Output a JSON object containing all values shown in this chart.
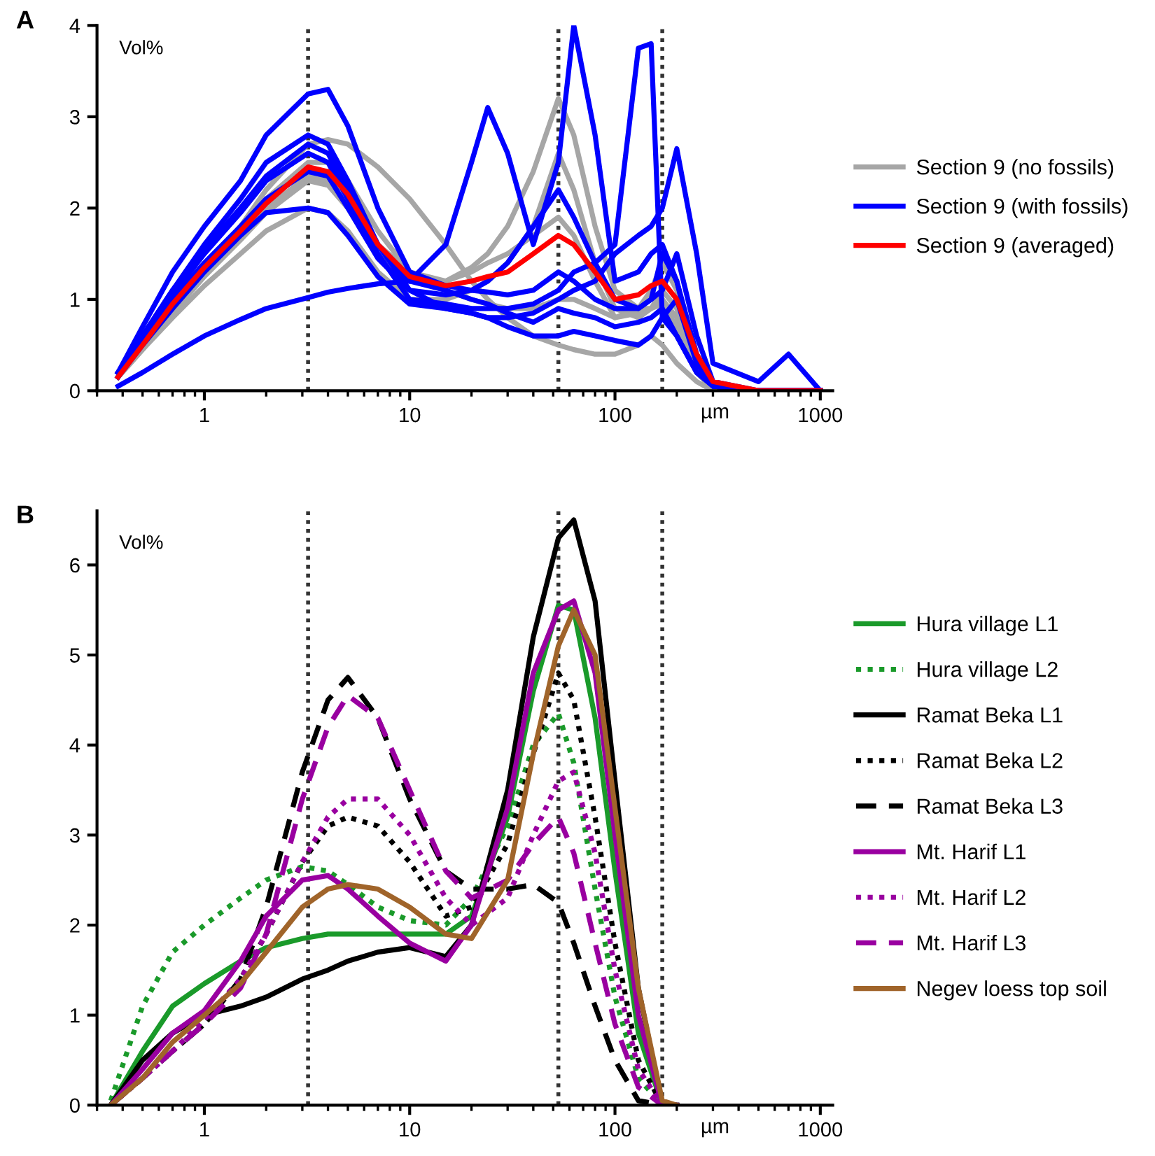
{
  "chart_data": [
    {
      "type": "line",
      "title": "A",
      "xlabel": "µm",
      "annotations": [
        "Vol%"
      ],
      "log": "x",
      "xlim": [
        0.3,
        1150
      ],
      "xticks": [
        1,
        10,
        100,
        1000
      ],
      "ylim": [
        0,
        4
      ],
      "yticks": [
        0,
        1,
        2,
        3,
        4
      ],
      "grid": false,
      "legend": "right",
      "marker": "none",
      "line_style": "solid",
      "x": [
        0.38,
        0.5,
        0.7,
        1,
        1.5,
        2,
        3.2,
        4,
        5,
        7,
        10,
        15,
        20,
        24,
        30,
        40,
        53,
        63,
        80,
        100,
        130,
        150,
        170,
        200,
        250,
        300,
        500,
        700,
        1000
      ],
      "ref_lines": [
        {
          "axis": "x",
          "value": 3.2,
          "color": "#333333",
          "line_style": "dotted"
        },
        {
          "axis": "x",
          "value": 53,
          "color": "#333333",
          "line_style": "dotted"
        },
        {
          "axis": "x",
          "value": 170,
          "color": "#333333",
          "line_style": "dotted"
        }
      ],
      "series": [
        {
          "name": "Section 9 (no fossils)",
          "color": "#a6a6a6",
          "values": [
            0.2,
            0.5,
            0.9,
            1.3,
            1.8,
            2.2,
            2.7,
            2.75,
            2.7,
            2.45,
            2.1,
            1.6,
            1.2,
            1.0,
            0.8,
            0.6,
            0.5,
            0.45,
            0.4,
            0.4,
            0.5,
            0.6,
            0.5,
            0.3,
            0.1,
            0,
            0,
            0,
            0
          ]
        },
        {
          "color": "#a6a6a6",
          "values": [
            0.15,
            0.45,
            0.85,
            1.25,
            1.65,
            1.95,
            2.3,
            2.25,
            2.0,
            1.5,
            1.2,
            1.2,
            1.35,
            1.5,
            1.8,
            2.4,
            3.2,
            2.8,
            1.8,
            1.1,
            0.9,
            0.9,
            1.0,
            0.8,
            0.2,
            0.02,
            0,
            0,
            0
          ]
        },
        {
          "color": "#a6a6a6",
          "values": [
            0.15,
            0.45,
            0.8,
            1.15,
            1.5,
            1.75,
            2.0,
            1.95,
            1.75,
            1.3,
            1.0,
            1.0,
            1.1,
            1.2,
            1.4,
            1.8,
            2.6,
            2.2,
            1.4,
            0.9,
            0.8,
            0.9,
            1.1,
            0.9,
            0.2,
            0.02,
            0,
            0,
            0
          ]
        },
        {
          "color": "#a6a6a6",
          "values": [
            0.15,
            0.5,
            0.9,
            1.3,
            1.7,
            2.0,
            2.35,
            2.3,
            2.1,
            1.6,
            1.3,
            1.2,
            1.3,
            1.4,
            1.5,
            1.7,
            1.9,
            1.7,
            1.2,
            0.8,
            0.9,
            1.1,
            1.4,
            1.1,
            0.3,
            0.05,
            0,
            0,
            0
          ]
        },
        {
          "color": "#a6a6a6",
          "values": [
            0.2,
            0.5,
            0.95,
            1.35,
            1.8,
            2.1,
            2.5,
            2.5,
            2.3,
            1.75,
            1.3,
            1.1,
            1.0,
            0.95,
            0.9,
            0.9,
            1.0,
            1.0,
            0.9,
            0.8,
            0.85,
            0.9,
            0.95,
            0.7,
            0.2,
            0.02,
            0,
            0,
            0
          ]
        },
        {
          "name": "Section 9 (with fossils)",
          "color": "#0000ff",
          "values": [
            0.2,
            0.7,
            1.3,
            1.8,
            2.3,
            2.8,
            3.25,
            3.3,
            2.9,
            2.0,
            1.3,
            1.15,
            1.1,
            1.08,
            1.05,
            1.1,
            1.3,
            1.2,
            1.0,
            0.9,
            0.9,
            1.0,
            1.1,
            1.5,
            0.6,
            0.1,
            0,
            0,
            0
          ]
        },
        {
          "color": "#0000ff",
          "values": [
            0.05,
            0.2,
            0.4,
            0.6,
            0.78,
            0.9,
            1.02,
            1.08,
            1.12,
            1.17,
            1.2,
            1.1,
            1.0,
            0.95,
            0.85,
            0.75,
            0.9,
            0.85,
            0.8,
            0.7,
            0.75,
            0.8,
            0.9,
            0.6,
            0.2,
            0.05,
            0,
            0,
            0
          ]
        },
        {
          "color": "#0000ff",
          "values": [
            0.2,
            0.6,
            1.1,
            1.6,
            2.1,
            2.5,
            2.8,
            2.7,
            2.3,
            1.6,
            1.2,
            1.6,
            2.5,
            3.1,
            2.6,
            1.6,
            2.5,
            4.0,
            2.8,
            1.2,
            1.3,
            1.5,
            1.6,
            1.2,
            0.4,
            0.05,
            0,
            0,
            0
          ]
        },
        {
          "color": "#0000ff",
          "values": [
            0.15,
            0.55,
            1.05,
            1.5,
            1.95,
            2.3,
            2.6,
            2.5,
            2.1,
            1.5,
            1.0,
            0.95,
            0.9,
            0.9,
            0.9,
            0.95,
            1.1,
            1.3,
            1.4,
            1.6,
            3.75,
            3.8,
            0.8,
            0.6,
            0.2,
            0.05,
            0,
            0,
            0
          ]
        },
        {
          "color": "#0000ff",
          "values": [
            0.2,
            0.6,
            1.1,
            1.55,
            2.0,
            2.35,
            2.7,
            2.6,
            2.2,
            1.6,
            1.1,
            0.9,
            0.85,
            0.8,
            0.8,
            0.85,
            1.0,
            1.1,
            1.2,
            1.5,
            1.7,
            1.8,
            2.0,
            2.65,
            1.5,
            0.3,
            0.1,
            0.4,
            0.0
          ]
        },
        {
          "color": "#0000ff",
          "values": [
            0.2,
            0.6,
            1.0,
            1.4,
            1.8,
            2.1,
            2.4,
            2.35,
            2.0,
            1.45,
            1.1,
            1.05,
            1.1,
            1.2,
            1.4,
            1.8,
            2.2,
            1.9,
            1.4,
            1.0,
            0.9,
            1.0,
            1.5,
            1.2,
            0.3,
            0.05,
            0,
            0,
            0
          ]
        },
        {
          "color": "#0000ff",
          "values": [
            0.15,
            0.5,
            0.9,
            1.3,
            1.7,
            1.95,
            2.0,
            1.95,
            1.7,
            1.25,
            0.95,
            0.9,
            0.85,
            0.8,
            0.7,
            0.6,
            0.6,
            0.65,
            0.6,
            0.55,
            0.5,
            0.6,
            0.8,
            1.0,
            0.3,
            0.05,
            0,
            0,
            0
          ]
        },
        {
          "name": "Section 9 (averaged)",
          "color": "#ff0000",
          "values": [
            0.15,
            0.5,
            0.95,
            1.35,
            1.75,
            2.05,
            2.45,
            2.4,
            2.15,
            1.6,
            1.25,
            1.15,
            1.2,
            1.25,
            1.3,
            1.5,
            1.7,
            1.6,
            1.3,
            1.0,
            1.05,
            1.15,
            1.2,
            1.0,
            0.4,
            0.1,
            0,
            0,
            0
          ]
        }
      ]
    },
    {
      "type": "line",
      "title": "B",
      "xlabel": "µm",
      "annotations": [
        "Vol%"
      ],
      "log": "x",
      "xlim": [
        0.3,
        1150
      ],
      "xticks": [
        1,
        10,
        100,
        1000
      ],
      "ylim": [
        0,
        6.6
      ],
      "yticks": [
        0,
        1,
        2,
        3,
        4,
        5,
        6
      ],
      "grid": false,
      "legend": "right",
      "marker": "none",
      "x": [
        0.35,
        0.5,
        0.7,
        1,
        1.5,
        2,
        3,
        4,
        5,
        7,
        10,
        15,
        20,
        30,
        40,
        53,
        63,
        80,
        100,
        130,
        170,
        200
      ],
      "ref_lines": [
        {
          "axis": "x",
          "value": 3.2,
          "color": "#333333",
          "line_style": "dotted"
        },
        {
          "axis": "x",
          "value": 53,
          "color": "#333333",
          "line_style": "dotted"
        },
        {
          "axis": "x",
          "value": 170,
          "color": "#333333",
          "line_style": "dotted"
        }
      ],
      "series": [
        {
          "name": "Hura village L1",
          "color": "#1a9a2a",
          "line_style": "solid",
          "values": [
            0,
            0.6,
            1.1,
            1.35,
            1.6,
            1.75,
            1.85,
            1.9,
            1.9,
            1.9,
            1.9,
            1.9,
            2.1,
            3.2,
            4.6,
            5.55,
            5.5,
            4.3,
            2.6,
            0.8,
            0,
            0
          ]
        },
        {
          "name": "Hura village L2",
          "color": "#1a9a2a",
          "line_style": "dotted",
          "values": [
            0.05,
            1.1,
            1.7,
            2.0,
            2.3,
            2.5,
            2.65,
            2.6,
            2.45,
            2.2,
            2.05,
            2.0,
            2.3,
            3.1,
            4.0,
            4.35,
            3.8,
            2.4,
            1.2,
            0.3,
            0,
            0
          ]
        },
        {
          "name": "Ramat Beka L1",
          "color": "#000000",
          "line_style": "solid",
          "values": [
            0,
            0.5,
            0.8,
            1.0,
            1.1,
            1.2,
            1.4,
            1.5,
            1.6,
            1.7,
            1.75,
            1.65,
            2.0,
            3.5,
            5.2,
            6.3,
            6.5,
            5.6,
            3.6,
            1.3,
            0,
            0
          ]
        },
        {
          "name": "Ramat Beka L2",
          "color": "#000000",
          "line_style": "dotted",
          "values": [
            0,
            0.3,
            0.6,
            0.9,
            1.4,
            1.9,
            2.7,
            3.1,
            3.2,
            3.1,
            2.7,
            2.1,
            2.2,
            2.9,
            3.9,
            4.8,
            4.5,
            3.2,
            1.8,
            0.5,
            0,
            0
          ]
        },
        {
          "name": "Ramat Beka L3",
          "color": "#000000",
          "line_style": "dashed",
          "values": [
            0,
            0.3,
            0.6,
            0.9,
            1.4,
            2.2,
            3.7,
            4.5,
            4.75,
            4.3,
            3.4,
            2.6,
            2.4,
            2.4,
            2.45,
            2.25,
            1.8,
            1.1,
            0.5,
            0.05,
            0,
            0
          ]
        },
        {
          "name": "Mt. Harif L1",
          "color": "#9900a0",
          "line_style": "solid",
          "values": [
            0,
            0.4,
            0.8,
            1.05,
            1.6,
            2.1,
            2.5,
            2.55,
            2.4,
            2.1,
            1.8,
            1.6,
            2.0,
            3.3,
            4.8,
            5.5,
            5.6,
            4.8,
            3.0,
            1.0,
            0,
            0
          ]
        },
        {
          "name": "Mt. Harif L2",
          "color": "#9900a0",
          "line_style": "dotted",
          "values": [
            0,
            0.3,
            0.6,
            0.95,
            1.4,
            1.9,
            2.7,
            3.2,
            3.4,
            3.4,
            3.0,
            2.3,
            2.0,
            2.3,
            3.0,
            3.6,
            3.7,
            2.8,
            1.5,
            0.4,
            0,
            0
          ]
        },
        {
          "name": "Mt. Harif L3",
          "color": "#9900a0",
          "line_style": "dashed",
          "values": [
            0,
            0.3,
            0.6,
            0.9,
            1.3,
            1.9,
            3.4,
            4.2,
            4.55,
            4.3,
            3.5,
            2.6,
            2.3,
            2.5,
            2.9,
            3.2,
            2.8,
            1.8,
            0.9,
            0.2,
            0,
            0
          ]
        },
        {
          "name": "Negev loess top soil",
          "color": "#a0642a",
          "line_style": "solid",
          "values": [
            0,
            0.3,
            0.7,
            1.0,
            1.35,
            1.7,
            2.2,
            2.4,
            2.45,
            2.4,
            2.2,
            1.9,
            1.85,
            2.5,
            3.9,
            5.1,
            5.5,
            5.0,
            3.3,
            1.3,
            0.05,
            0
          ]
        }
      ]
    }
  ]
}
